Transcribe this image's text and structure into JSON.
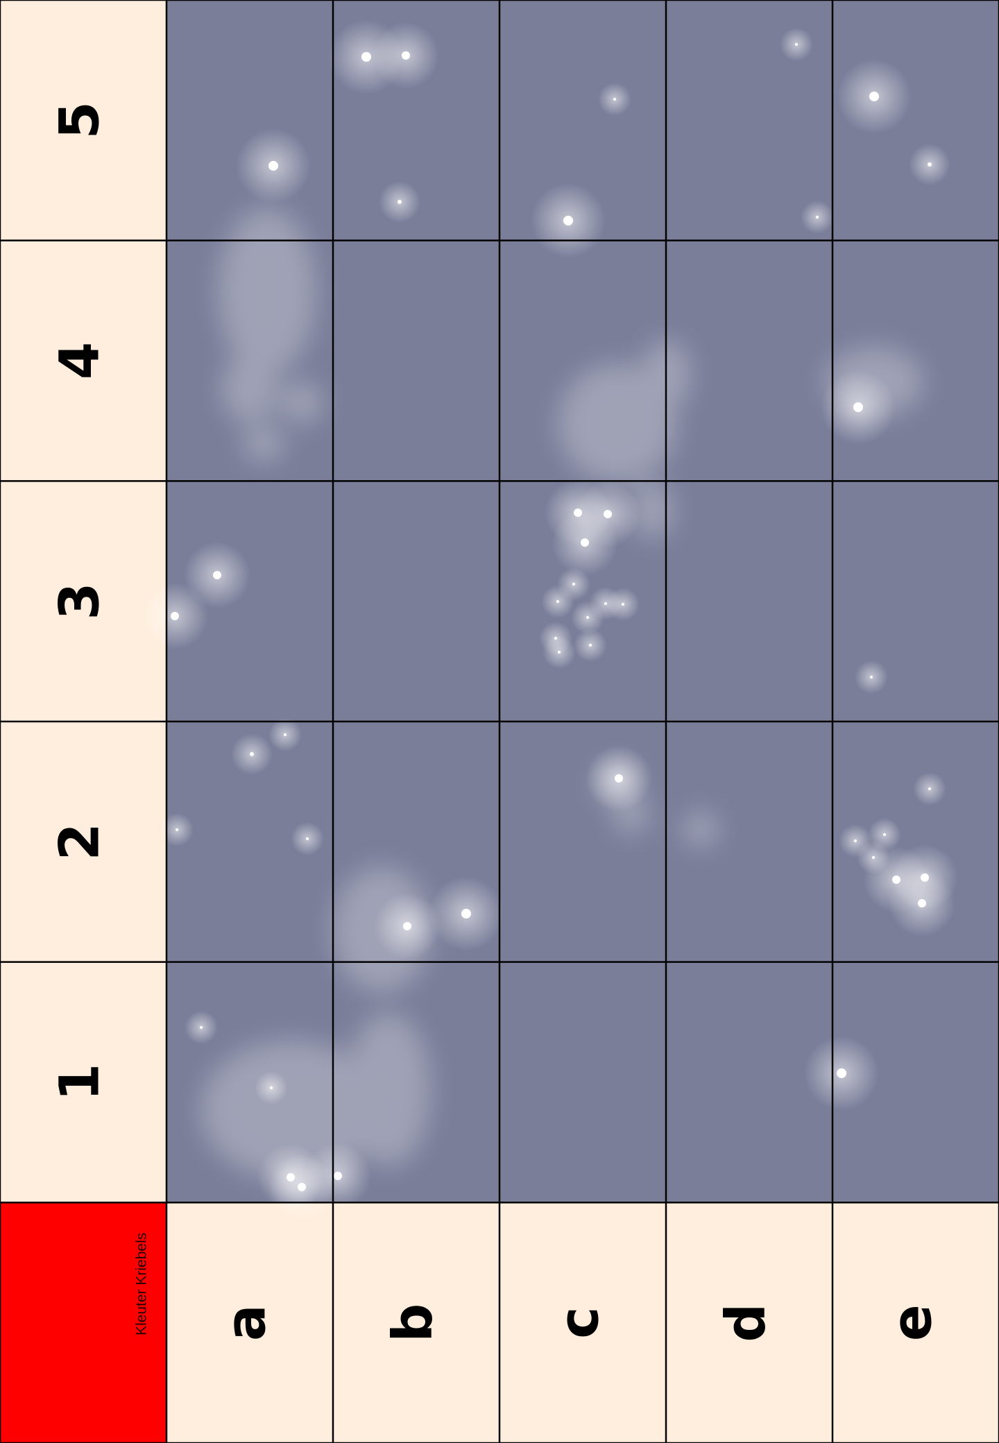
{
  "row_labels": [
    "5",
    "4",
    "3",
    "2",
    "1"
  ],
  "column_labels": [
    "a",
    "b",
    "c",
    "d",
    "e"
  ],
  "corner": {
    "label": "Kleuter Kriebels"
  }
}
